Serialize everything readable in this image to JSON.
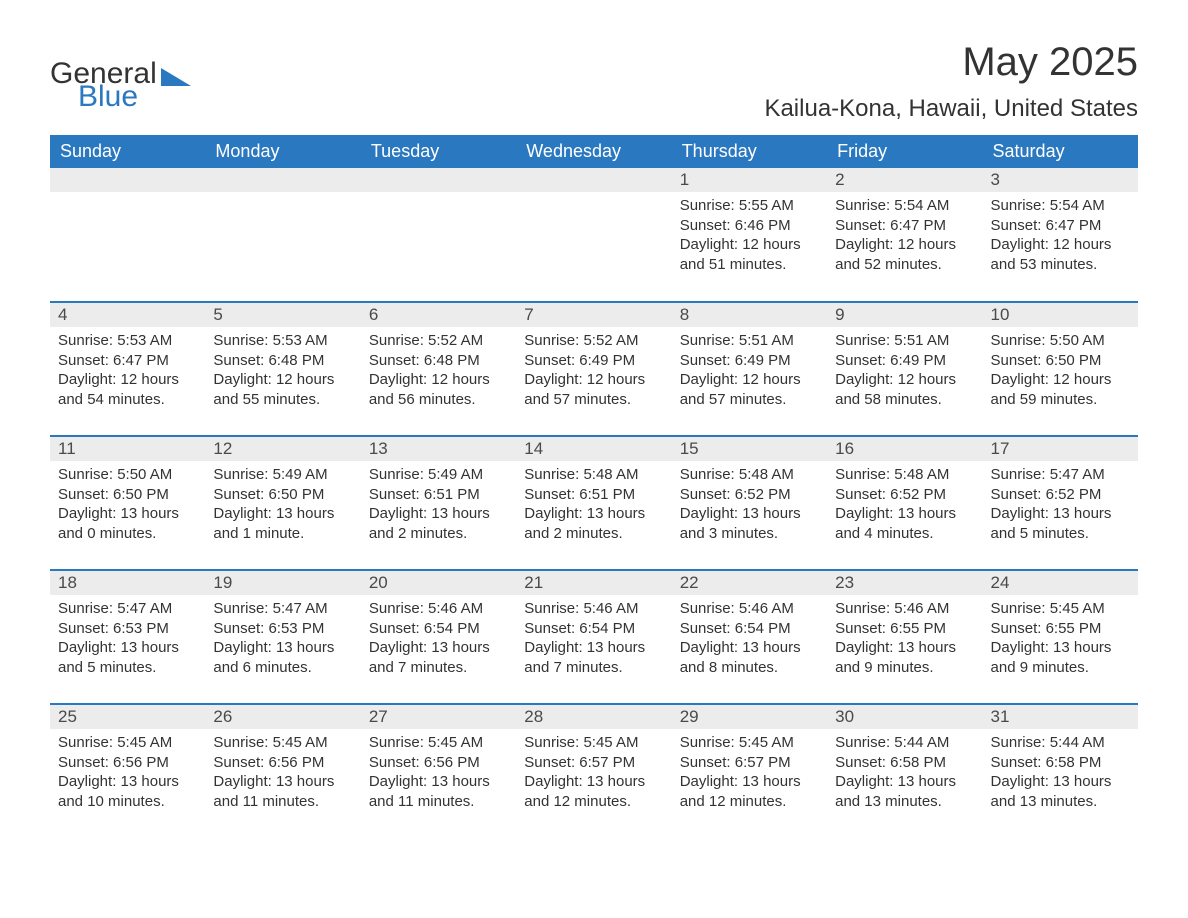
{
  "logo": {
    "line1": "General",
    "line2": "Blue"
  },
  "title": "May 2025",
  "location": "Kailua-Kona, Hawaii, United States",
  "colors": {
    "header_bg": "#2a78c0",
    "header_fg": "#ffffff",
    "daynum_bg": "#ececec",
    "border": "#2a78c0",
    "text": "#333333"
  },
  "day_headers": [
    "Sunday",
    "Monday",
    "Tuesday",
    "Wednesday",
    "Thursday",
    "Friday",
    "Saturday"
  ],
  "weeks": [
    [
      null,
      null,
      null,
      null,
      {
        "n": "1",
        "sr": "Sunrise: 5:55 AM",
        "ss": "Sunset: 6:46 PM",
        "dl": "Daylight: 12 hours and 51 minutes."
      },
      {
        "n": "2",
        "sr": "Sunrise: 5:54 AM",
        "ss": "Sunset: 6:47 PM",
        "dl": "Daylight: 12 hours and 52 minutes."
      },
      {
        "n": "3",
        "sr": "Sunrise: 5:54 AM",
        "ss": "Sunset: 6:47 PM",
        "dl": "Daylight: 12 hours and 53 minutes."
      }
    ],
    [
      {
        "n": "4",
        "sr": "Sunrise: 5:53 AM",
        "ss": "Sunset: 6:47 PM",
        "dl": "Daylight: 12 hours and 54 minutes."
      },
      {
        "n": "5",
        "sr": "Sunrise: 5:53 AM",
        "ss": "Sunset: 6:48 PM",
        "dl": "Daylight: 12 hours and 55 minutes."
      },
      {
        "n": "6",
        "sr": "Sunrise: 5:52 AM",
        "ss": "Sunset: 6:48 PM",
        "dl": "Daylight: 12 hours and 56 minutes."
      },
      {
        "n": "7",
        "sr": "Sunrise: 5:52 AM",
        "ss": "Sunset: 6:49 PM",
        "dl": "Daylight: 12 hours and 57 minutes."
      },
      {
        "n": "8",
        "sr": "Sunrise: 5:51 AM",
        "ss": "Sunset: 6:49 PM",
        "dl": "Daylight: 12 hours and 57 minutes."
      },
      {
        "n": "9",
        "sr": "Sunrise: 5:51 AM",
        "ss": "Sunset: 6:49 PM",
        "dl": "Daylight: 12 hours and 58 minutes."
      },
      {
        "n": "10",
        "sr": "Sunrise: 5:50 AM",
        "ss": "Sunset: 6:50 PM",
        "dl": "Daylight: 12 hours and 59 minutes."
      }
    ],
    [
      {
        "n": "11",
        "sr": "Sunrise: 5:50 AM",
        "ss": "Sunset: 6:50 PM",
        "dl": "Daylight: 13 hours and 0 minutes."
      },
      {
        "n": "12",
        "sr": "Sunrise: 5:49 AM",
        "ss": "Sunset: 6:50 PM",
        "dl": "Daylight: 13 hours and 1 minute."
      },
      {
        "n": "13",
        "sr": "Sunrise: 5:49 AM",
        "ss": "Sunset: 6:51 PM",
        "dl": "Daylight: 13 hours and 2 minutes."
      },
      {
        "n": "14",
        "sr": "Sunrise: 5:48 AM",
        "ss": "Sunset: 6:51 PM",
        "dl": "Daylight: 13 hours and 2 minutes."
      },
      {
        "n": "15",
        "sr": "Sunrise: 5:48 AM",
        "ss": "Sunset: 6:52 PM",
        "dl": "Daylight: 13 hours and 3 minutes."
      },
      {
        "n": "16",
        "sr": "Sunrise: 5:48 AM",
        "ss": "Sunset: 6:52 PM",
        "dl": "Daylight: 13 hours and 4 minutes."
      },
      {
        "n": "17",
        "sr": "Sunrise: 5:47 AM",
        "ss": "Sunset: 6:52 PM",
        "dl": "Daylight: 13 hours and 5 minutes."
      }
    ],
    [
      {
        "n": "18",
        "sr": "Sunrise: 5:47 AM",
        "ss": "Sunset: 6:53 PM",
        "dl": "Daylight: 13 hours and 5 minutes."
      },
      {
        "n": "19",
        "sr": "Sunrise: 5:47 AM",
        "ss": "Sunset: 6:53 PM",
        "dl": "Daylight: 13 hours and 6 minutes."
      },
      {
        "n": "20",
        "sr": "Sunrise: 5:46 AM",
        "ss": "Sunset: 6:54 PM",
        "dl": "Daylight: 13 hours and 7 minutes."
      },
      {
        "n": "21",
        "sr": "Sunrise: 5:46 AM",
        "ss": "Sunset: 6:54 PM",
        "dl": "Daylight: 13 hours and 7 minutes."
      },
      {
        "n": "22",
        "sr": "Sunrise: 5:46 AM",
        "ss": "Sunset: 6:54 PM",
        "dl": "Daylight: 13 hours and 8 minutes."
      },
      {
        "n": "23",
        "sr": "Sunrise: 5:46 AM",
        "ss": "Sunset: 6:55 PM",
        "dl": "Daylight: 13 hours and 9 minutes."
      },
      {
        "n": "24",
        "sr": "Sunrise: 5:45 AM",
        "ss": "Sunset: 6:55 PM",
        "dl": "Daylight: 13 hours and 9 minutes."
      }
    ],
    [
      {
        "n": "25",
        "sr": "Sunrise: 5:45 AM",
        "ss": "Sunset: 6:56 PM",
        "dl": "Daylight: 13 hours and 10 minutes."
      },
      {
        "n": "26",
        "sr": "Sunrise: 5:45 AM",
        "ss": "Sunset: 6:56 PM",
        "dl": "Daylight: 13 hours and 11 minutes."
      },
      {
        "n": "27",
        "sr": "Sunrise: 5:45 AM",
        "ss": "Sunset: 6:56 PM",
        "dl": "Daylight: 13 hours and 11 minutes."
      },
      {
        "n": "28",
        "sr": "Sunrise: 5:45 AM",
        "ss": "Sunset: 6:57 PM",
        "dl": "Daylight: 13 hours and 12 minutes."
      },
      {
        "n": "29",
        "sr": "Sunrise: 5:45 AM",
        "ss": "Sunset: 6:57 PM",
        "dl": "Daylight: 13 hours and 12 minutes."
      },
      {
        "n": "30",
        "sr": "Sunrise: 5:44 AM",
        "ss": "Sunset: 6:58 PM",
        "dl": "Daylight: 13 hours and 13 minutes."
      },
      {
        "n": "31",
        "sr": "Sunrise: 5:44 AM",
        "ss": "Sunset: 6:58 PM",
        "dl": "Daylight: 13 hours and 13 minutes."
      }
    ]
  ]
}
